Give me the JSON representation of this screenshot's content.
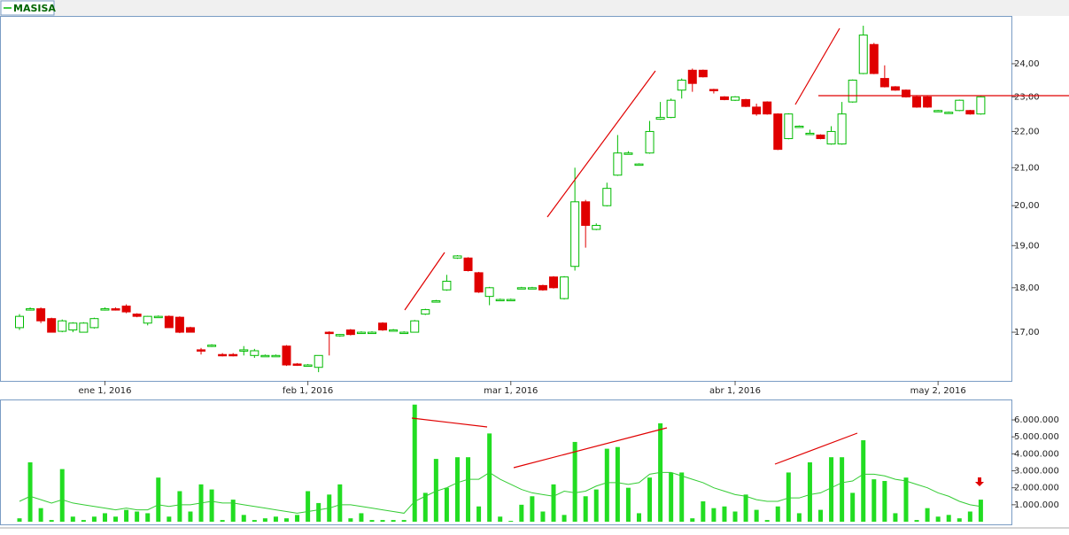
{
  "chart_data": [
    {
      "type": "candlestick",
      "name": "MASISA",
      "up_color": "#00bb00",
      "down_color": "#e00000",
      "log_scale": true,
      "grid": false,
      "ylim": [
        15.97,
        25.49
      ],
      "yticks": [
        {
          "value": 17,
          "label": "17,00"
        },
        {
          "value": 18,
          "label": "18,00"
        },
        {
          "value": 19,
          "label": "19,00"
        },
        {
          "value": 20,
          "label": "20,00"
        },
        {
          "value": 21,
          "label": "21,00"
        },
        {
          "value": 22,
          "label": "22,00"
        },
        {
          "value": 23,
          "label": "23,00"
        },
        {
          "value": 24,
          "label": "24,00"
        }
      ],
      "categories": [
        null,
        null,
        null,
        null,
        null,
        null,
        null,
        null,
        "ene 1, 2016",
        null,
        null,
        null,
        null,
        null,
        null,
        null,
        null,
        null,
        null,
        null,
        null,
        null,
        null,
        null,
        null,
        null,
        null,
        "feb 1, 2016",
        null,
        null,
        null,
        null,
        null,
        null,
        null,
        null,
        null,
        null,
        null,
        null,
        null,
        null,
        null,
        null,
        null,
        null,
        "mar 1, 2016",
        null,
        null,
        null,
        null,
        null,
        null,
        null,
        null,
        null,
        null,
        null,
        null,
        null,
        null,
        null,
        null,
        null,
        null,
        null,
        null,
        "abr 1, 2016",
        null,
        null,
        null,
        null,
        null,
        null,
        null,
        null,
        null,
        null,
        null,
        null,
        null,
        null,
        null,
        null,
        null,
        null,
        "may 2, 2016",
        null,
        null,
        null,
        null
      ],
      "open": [
        17.1,
        17.5,
        17.52,
        17.3,
        17.02,
        17.05,
        17.0,
        17.1,
        17.5,
        17.52,
        17.58,
        17.4,
        17.2,
        17.34,
        17.35,
        17.33,
        17.1,
        16.62,
        16.7,
        16.52,
        16.52,
        16.6,
        16.5,
        16.5,
        16.5,
        16.7,
        16.32,
        16.3,
        16.25,
        17.0,
        16.92,
        17.05,
        17.0,
        17.0,
        17.2,
        17.05,
        17.0,
        17.0,
        17.4,
        17.7,
        17.95,
        18.7,
        18.7,
        18.35,
        17.8,
        17.73,
        17.73,
        18.0,
        18.0,
        18.05,
        18.25,
        17.75,
        18.5,
        20.1,
        19.4,
        20.0,
        20.8,
        21.4,
        21.1,
        21.4,
        22.35,
        22.4,
        23.2,
        23.8,
        23.8,
        23.22,
        23.0,
        22.9,
        22.92,
        22.7,
        22.85,
        22.5,
        21.8,
        22.15,
        21.95,
        21.9,
        21.65,
        21.65,
        22.85,
        23.7,
        24.6,
        23.55,
        23.3,
        23.2,
        23.0,
        23.0,
        22.6,
        22.55,
        22.6,
        22.6,
        22.5
      ],
      "high": [
        17.4,
        17.55,
        17.55,
        17.32,
        17.28,
        17.22,
        17.22,
        17.32,
        17.55,
        17.55,
        17.62,
        17.42,
        17.36,
        17.37,
        17.37,
        17.35,
        17.12,
        16.66,
        16.74,
        16.55,
        16.55,
        16.7,
        16.64,
        16.52,
        16.52,
        16.72,
        16.34,
        16.32,
        16.5,
        17.02,
        16.96,
        17.07,
        17.02,
        17.02,
        17.22,
        17.07,
        17.02,
        17.27,
        17.52,
        17.72,
        18.3,
        18.77,
        18.72,
        18.37,
        18.02,
        17.75,
        17.75,
        18.02,
        18.02,
        18.07,
        18.27,
        18.27,
        21.0,
        20.15,
        19.55,
        20.6,
        21.9,
        21.45,
        21.12,
        22.3,
        22.85,
        22.95,
        23.55,
        23.85,
        23.82,
        23.24,
        23.02,
        23.02,
        22.94,
        22.8,
        22.87,
        22.52,
        22.52,
        22.17,
        22.05,
        21.92,
        22.15,
        22.85,
        23.52,
        25.2,
        24.65,
        23.95,
        23.32,
        23.22,
        23.05,
        23.02,
        22.62,
        22.57,
        22.92,
        22.62,
        23.02
      ],
      "low": [
        17.05,
        17.48,
        17.2,
        17.0,
        17.0,
        17.0,
        17.0,
        17.08,
        17.48,
        17.48,
        17.42,
        17.33,
        17.15,
        17.32,
        17.1,
        16.98,
        17.0,
        16.52,
        16.68,
        16.48,
        16.48,
        16.5,
        16.45,
        16.48,
        16.48,
        16.28,
        16.28,
        16.28,
        16.15,
        16.5,
        16.9,
        16.93,
        16.98,
        16.98,
        17.03,
        17.03,
        16.98,
        17.0,
        17.38,
        17.68,
        17.93,
        18.68,
        18.38,
        17.88,
        17.6,
        17.71,
        17.71,
        17.98,
        17.98,
        17.93,
        17.98,
        17.73,
        18.4,
        18.95,
        19.38,
        19.98,
        20.78,
        21.38,
        21.08,
        21.38,
        22.33,
        22.38,
        22.95,
        23.15,
        23.58,
        23.1,
        22.9,
        22.88,
        22.7,
        22.45,
        22.48,
        21.48,
        21.78,
        22.13,
        21.93,
        21.78,
        21.63,
        21.63,
        22.83,
        23.68,
        23.68,
        23.28,
        23.18,
        22.98,
        22.68,
        22.68,
        22.58,
        22.53,
        22.58,
        22.48,
        22.48
      ],
      "close": [
        17.35,
        17.52,
        17.25,
        17.0,
        17.25,
        17.2,
        17.2,
        17.3,
        17.52,
        17.5,
        17.45,
        17.35,
        17.35,
        17.35,
        17.1,
        17.0,
        17.0,
        16.6,
        16.72,
        16.5,
        16.5,
        16.62,
        16.6,
        16.5,
        16.5,
        16.3,
        16.3,
        16.3,
        16.5,
        16.97,
        16.95,
        16.95,
        17.0,
        17.0,
        17.05,
        17.05,
        17.0,
        17.25,
        17.5,
        17.7,
        18.15,
        18.75,
        18.4,
        17.9,
        18.0,
        17.73,
        17.73,
        18.0,
        18.0,
        17.95,
        18.0,
        18.25,
        20.1,
        19.5,
        19.5,
        20.45,
        21.4,
        21.4,
        21.1,
        22.0,
        22.4,
        22.9,
        23.5,
        23.4,
        23.6,
        23.18,
        22.92,
        23.0,
        22.72,
        22.5,
        22.5,
        21.5,
        22.5,
        22.15,
        21.95,
        21.8,
        22.0,
        22.5,
        23.5,
        24.9,
        23.7,
        23.3,
        23.2,
        23.0,
        22.7,
        22.7,
        22.6,
        22.55,
        22.9,
        22.5,
        23.0
      ]
    },
    {
      "type": "volume",
      "color": "#22dd22",
      "line_color": "#33cc33",
      "ylim": [
        0,
        7150000
      ],
      "yticks": [
        {
          "value": 1000000,
          "label": "1.000.000"
        },
        {
          "value": 2000000,
          "label": "2.000.000"
        },
        {
          "value": 3000000,
          "label": "3.000.000"
        },
        {
          "value": 4000000,
          "label": "4.000.000"
        },
        {
          "value": 5000000,
          "label": "5.000.000"
        },
        {
          "value": 6000000,
          "label": "6.000.000"
        }
      ],
      "values": [
        200000,
        3500000,
        800000,
        100000,
        3100000,
        300000,
        100000,
        300000,
        500000,
        300000,
        700000,
        600000,
        500000,
        2600000,
        300000,
        1800000,
        600000,
        2200000,
        1900000,
        100000,
        1300000,
        400000,
        100000,
        200000,
        300000,
        200000,
        400000,
        1800000,
        1100000,
        1600000,
        2200000,
        200000,
        500000,
        100000,
        100000,
        100000,
        100000,
        6900000,
        1700000,
        3700000,
        2000000,
        3800000,
        3800000,
        900000,
        5200000,
        300000,
        50000,
        1000000,
        1500000,
        600000,
        2200000,
        400000,
        4700000,
        1500000,
        1900000,
        4300000,
        4400000,
        2000000,
        500000,
        2600000,
        5800000,
        2900000,
        2900000,
        200000,
        1200000,
        800000,
        900000,
        600000,
        1600000,
        700000,
        100000,
        900000,
        2900000,
        500000,
        3500000,
        700000,
        3800000,
        3800000,
        1700000,
        4800000,
        2500000,
        2400000,
        500000,
        2600000,
        100000,
        800000,
        300000,
        400000,
        200000,
        600000,
        1300000
      ],
      "average": [
        1200000,
        1500000,
        1300000,
        1100000,
        1300000,
        1100000,
        1000000,
        900000,
        800000,
        700000,
        800000,
        700000,
        700000,
        1000000,
        900000,
        1000000,
        1000000,
        1100000,
        1200000,
        1100000,
        1100000,
        1000000,
        900000,
        800000,
        700000,
        600000,
        500000,
        600000,
        700000,
        800000,
        1000000,
        1000000,
        900000,
        800000,
        700000,
        600000,
        500000,
        1200000,
        1500000,
        1800000,
        2000000,
        2300000,
        2500000,
        2500000,
        2900000,
        2500000,
        2200000,
        1900000,
        1700000,
        1600000,
        1500000,
        1800000,
        1700000,
        1800000,
        2100000,
        2300000,
        2300000,
        2200000,
        2300000,
        2800000,
        2900000,
        2900000,
        2700000,
        2500000,
        2300000,
        2000000,
        1800000,
        1600000,
        1500000,
        1300000,
        1200000,
        1200000,
        1400000,
        1400000,
        1600000,
        1700000,
        2000000,
        2300000,
        2400000,
        2800000,
        2800000,
        2700000,
        2500000,
        2400000,
        2200000,
        2000000,
        1700000,
        1500000,
        1200000,
        1000000,
        900000
      ]
    }
  ]
}
